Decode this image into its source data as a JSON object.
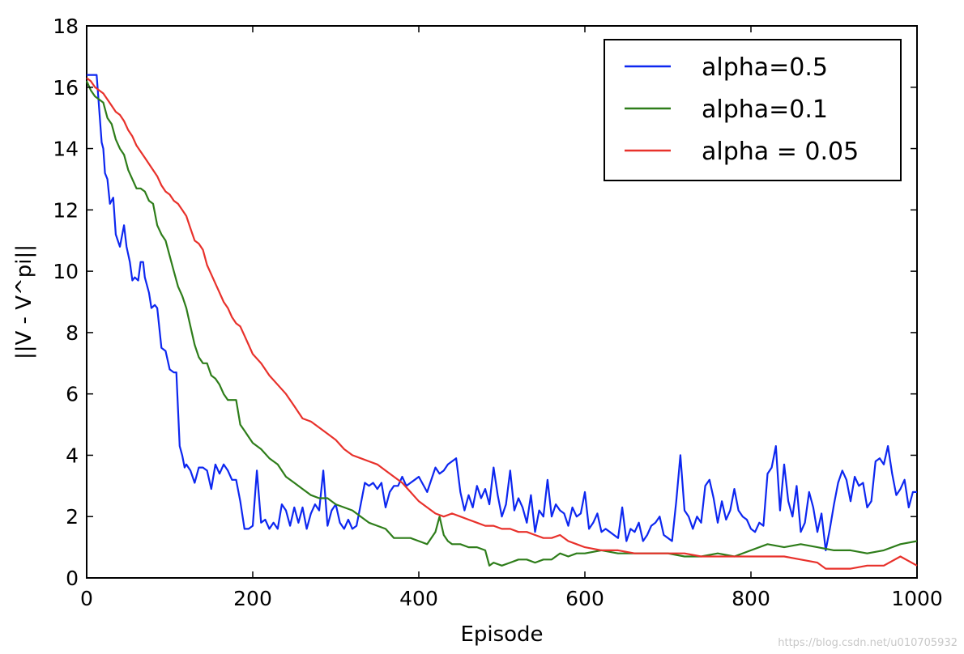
{
  "chart_data": {
    "type": "line",
    "title": "",
    "xlabel": "Episode",
    "ylabel": "||V - V^pi||",
    "xlim": [
      0,
      1000
    ],
    "ylim": [
      0,
      18
    ],
    "xticks": [
      0,
      200,
      400,
      600,
      800,
      1000
    ],
    "yticks": [
      0,
      2,
      4,
      6,
      8,
      10,
      12,
      14,
      16,
      18
    ],
    "grid": false,
    "legend_position": "top-right",
    "series": [
      {
        "name": "alpha=0.5",
        "color": "#0d27f0",
        "x": [
          0,
          5,
          12,
          18,
          20,
          22,
          25,
          28,
          32,
          35,
          40,
          45,
          48,
          52,
          55,
          58,
          62,
          65,
          68,
          70,
          75,
          78,
          82,
          85,
          90,
          95,
          100,
          105,
          108,
          112,
          115,
          118,
          120,
          125,
          130,
          135,
          140,
          145,
          150,
          155,
          160,
          165,
          170,
          175,
          180,
          185,
          190,
          195,
          200,
          205,
          210,
          215,
          220,
          225,
          230,
          235,
          240,
          245,
          250,
          255,
          260,
          265,
          270,
          275,
          280,
          285,
          290,
          295,
          300,
          305,
          310,
          315,
          320,
          325,
          330,
          335,
          340,
          345,
          350,
          355,
          360,
          365,
          370,
          375,
          380,
          385,
          390,
          395,
          400,
          410,
          420,
          425,
          430,
          435,
          440,
          445,
          450,
          455,
          460,
          465,
          470,
          475,
          480,
          485,
          490,
          495,
          500,
          505,
          510,
          515,
          520,
          525,
          530,
          535,
          540,
          545,
          550,
          555,
          560,
          565,
          570,
          575,
          580,
          585,
          590,
          595,
          600,
          605,
          610,
          615,
          620,
          625,
          630,
          635,
          640,
          645,
          650,
          655,
          660,
          665,
          670,
          675,
          680,
          685,
          690,
          695,
          700,
          705,
          710,
          715,
          720,
          725,
          730,
          735,
          740,
          745,
          750,
          755,
          760,
          765,
          770,
          775,
          780,
          785,
          790,
          795,
          800,
          805,
          810,
          815,
          820,
          825,
          830,
          835,
          840,
          845,
          850,
          855,
          860,
          865,
          870,
          875,
          880,
          885,
          890,
          895,
          900,
          905,
          910,
          915,
          920,
          925,
          930,
          935,
          940,
          945,
          950,
          955,
          960,
          965,
          970,
          975,
          980,
          985,
          990,
          995,
          1000
        ],
        "y": [
          16.4,
          16.4,
          16.4,
          14.2,
          14.0,
          13.2,
          13.0,
          12.2,
          12.4,
          11.2,
          10.8,
          11.5,
          10.8,
          10.3,
          9.7,
          9.8,
          9.7,
          10.3,
          10.3,
          9.8,
          9.3,
          8.8,
          8.9,
          8.8,
          7.5,
          7.4,
          6.8,
          6.7,
          6.7,
          4.3,
          4.0,
          3.6,
          3.7,
          3.5,
          3.1,
          3.6,
          3.6,
          3.5,
          2.9,
          3.7,
          3.4,
          3.7,
          3.5,
          3.2,
          3.2,
          2.5,
          1.6,
          1.6,
          1.7,
          3.5,
          1.8,
          1.9,
          1.6,
          1.8,
          1.6,
          2.4,
          2.2,
          1.7,
          2.3,
          1.8,
          2.3,
          1.6,
          2.1,
          2.4,
          2.2,
          3.5,
          1.7,
          2.2,
          2.4,
          1.8,
          1.6,
          1.9,
          1.6,
          1.7,
          2.4,
          3.1,
          3.0,
          3.1,
          2.9,
          3.1,
          2.3,
          2.8,
          3.0,
          3.0,
          3.3,
          3.0,
          3.1,
          3.2,
          3.3,
          2.8,
          3.6,
          3.4,
          3.5,
          3.7,
          3.8,
          3.9,
          2.8,
          2.2,
          2.7,
          2.3,
          3.0,
          2.6,
          2.9,
          2.4,
          3.6,
          2.7,
          2.0,
          2.4,
          3.5,
          2.2,
          2.6,
          2.3,
          1.8,
          2.7,
          1.5,
          2.2,
          2.0,
          3.2,
          2.0,
          2.4,
          2.2,
          2.1,
          1.7,
          2.3,
          2.0,
          2.1,
          2.8,
          1.6,
          1.8,
          2.1,
          1.5,
          1.6,
          1.5,
          1.4,
          1.3,
          2.3,
          1.2,
          1.6,
          1.5,
          1.8,
          1.2,
          1.4,
          1.7,
          1.8,
          2.0,
          1.4,
          1.3,
          1.2,
          2.5,
          4.0,
          2.2,
          2.0,
          1.6,
          2.0,
          1.8,
          3.0,
          3.2,
          2.6,
          1.8,
          2.5,
          1.9,
          2.2,
          2.9,
          2.2,
          2.0,
          1.9,
          1.6,
          1.5,
          1.8,
          1.7,
          3.4,
          3.6,
          4.3,
          2.2,
          3.7,
          2.5,
          2.0,
          3.0,
          1.5,
          1.8,
          2.8,
          2.3,
          1.5,
          2.1,
          0.9,
          1.6,
          2.4,
          3.1,
          3.5,
          3.2,
          2.5,
          3.3,
          3.0,
          3.1,
          2.3,
          2.5,
          3.8,
          3.9,
          3.7,
          4.3,
          3.4,
          2.7,
          2.9,
          3.2,
          2.3,
          2.8,
          2.8
        ]
      },
      {
        "name": "alpha=0.1",
        "color": "#2e7d1a",
        "x": [
          0,
          5,
          10,
          15,
          20,
          25,
          30,
          35,
          40,
          45,
          50,
          55,
          60,
          65,
          70,
          75,
          80,
          85,
          90,
          95,
          100,
          105,
          110,
          115,
          120,
          125,
          130,
          135,
          140,
          145,
          150,
          155,
          160,
          165,
          170,
          175,
          180,
          185,
          190,
          195,
          200,
          210,
          220,
          230,
          240,
          250,
          260,
          270,
          280,
          290,
          300,
          310,
          320,
          330,
          340,
          350,
          360,
          370,
          380,
          390,
          400,
          410,
          420,
          425,
          430,
          435,
          440,
          450,
          460,
          470,
          480,
          485,
          490,
          500,
          510,
          520,
          530,
          540,
          550,
          560,
          570,
          580,
          590,
          600,
          620,
          640,
          660,
          680,
          700,
          720,
          740,
          760,
          780,
          800,
          820,
          840,
          860,
          880,
          900,
          920,
          940,
          960,
          980,
          1000
        ],
        "y": [
          16.2,
          15.9,
          15.7,
          15.6,
          15.5,
          15.0,
          14.8,
          14.3,
          14.0,
          13.8,
          13.3,
          13.0,
          12.7,
          12.7,
          12.6,
          12.3,
          12.2,
          11.5,
          11.2,
          11.0,
          10.5,
          10.0,
          9.5,
          9.2,
          8.8,
          8.2,
          7.6,
          7.2,
          7.0,
          7.0,
          6.6,
          6.5,
          6.3,
          6.0,
          5.8,
          5.8,
          5.8,
          5.0,
          4.8,
          4.6,
          4.4,
          4.2,
          3.9,
          3.7,
          3.3,
          3.1,
          2.9,
          2.7,
          2.6,
          2.6,
          2.4,
          2.3,
          2.2,
          2.0,
          1.8,
          1.7,
          1.6,
          1.3,
          1.3,
          1.3,
          1.2,
          1.1,
          1.5,
          2.0,
          1.4,
          1.2,
          1.1,
          1.1,
          1.0,
          1.0,
          0.9,
          0.4,
          0.5,
          0.4,
          0.5,
          0.6,
          0.6,
          0.5,
          0.6,
          0.6,
          0.8,
          0.7,
          0.8,
          0.8,
          0.9,
          0.8,
          0.8,
          0.8,
          0.8,
          0.7,
          0.7,
          0.8,
          0.7,
          0.9,
          1.1,
          1.0,
          1.1,
          1.0,
          0.9,
          0.9,
          0.8,
          0.9,
          1.1,
          1.2
        ]
      },
      {
        "name": "alpha = 0.05",
        "color": "#e8312b",
        "x": [
          0,
          5,
          10,
          15,
          20,
          25,
          30,
          35,
          40,
          45,
          50,
          55,
          60,
          65,
          70,
          75,
          80,
          85,
          90,
          95,
          100,
          105,
          110,
          115,
          120,
          125,
          130,
          135,
          140,
          145,
          150,
          155,
          160,
          165,
          170,
          175,
          180,
          185,
          190,
          195,
          200,
          210,
          220,
          230,
          240,
          250,
          260,
          270,
          280,
          290,
          300,
          310,
          320,
          330,
          340,
          350,
          360,
          370,
          380,
          390,
          400,
          410,
          420,
          430,
          440,
          450,
          460,
          470,
          480,
          490,
          500,
          510,
          520,
          530,
          540,
          550,
          560,
          570,
          580,
          590,
          600,
          620,
          640,
          660,
          680,
          700,
          720,
          740,
          760,
          780,
          800,
          820,
          840,
          860,
          880,
          890,
          900,
          920,
          940,
          960,
          980,
          1000
        ],
        "y": [
          16.3,
          16.2,
          16.0,
          15.9,
          15.8,
          15.6,
          15.4,
          15.2,
          15.1,
          14.9,
          14.6,
          14.4,
          14.1,
          13.9,
          13.7,
          13.5,
          13.3,
          13.1,
          12.8,
          12.6,
          12.5,
          12.3,
          12.2,
          12.0,
          11.8,
          11.4,
          11.0,
          10.9,
          10.7,
          10.2,
          9.9,
          9.6,
          9.3,
          9.0,
          8.8,
          8.5,
          8.3,
          8.2,
          7.9,
          7.6,
          7.3,
          7.0,
          6.6,
          6.3,
          6.0,
          5.6,
          5.2,
          5.1,
          4.9,
          4.7,
          4.5,
          4.2,
          4.0,
          3.9,
          3.8,
          3.7,
          3.5,
          3.3,
          3.1,
          2.8,
          2.5,
          2.3,
          2.1,
          2.0,
          2.1,
          2.0,
          1.9,
          1.8,
          1.7,
          1.7,
          1.6,
          1.6,
          1.5,
          1.5,
          1.4,
          1.3,
          1.3,
          1.4,
          1.2,
          1.1,
          1.0,
          0.9,
          0.9,
          0.8,
          0.8,
          0.8,
          0.8,
          0.7,
          0.7,
          0.7,
          0.7,
          0.7,
          0.7,
          0.6,
          0.5,
          0.3,
          0.3,
          0.3,
          0.4,
          0.4,
          0.7,
          0.4
        ]
      }
    ]
  },
  "watermark": "https://blog.csdn.net/u010705932"
}
